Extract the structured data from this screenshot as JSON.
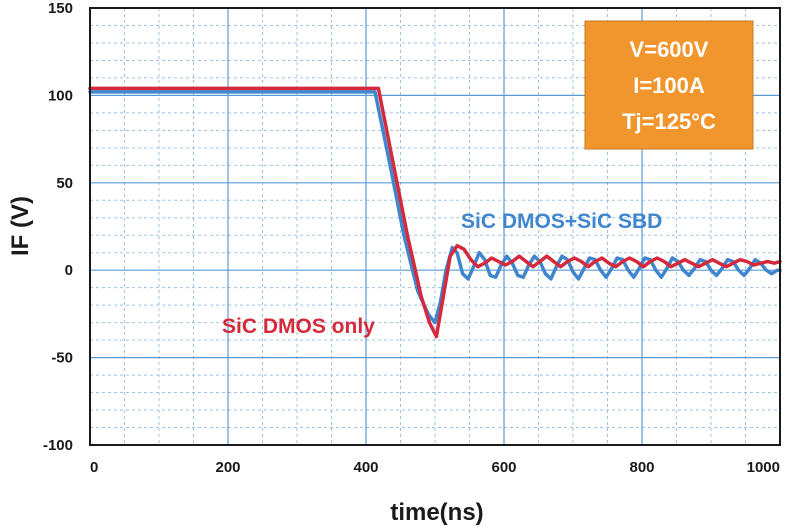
{
  "chart_data": {
    "type": "line",
    "xlabel": "time(ns)",
    "ylabel": "IF (V)",
    "xlim": [
      0,
      1000
    ],
    "ylim": [
      -100,
      150
    ],
    "x_ticks": [
      0,
      200,
      400,
      600,
      800,
      1000
    ],
    "y_ticks": [
      150,
      100,
      50,
      0,
      -50,
      -100
    ],
    "x_ticks_labels": [
      "0",
      "200",
      "400",
      "600",
      "800",
      "1000"
    ],
    "y_ticks_labels": [
      "150",
      "100",
      "50",
      "0",
      "-50",
      "-100"
    ],
    "grid": true,
    "annotation_box": {
      "lines": [
        "V=600V",
        "I=100A",
        "Tj=125°C"
      ],
      "color": "#F0962D"
    },
    "series": [
      {
        "name": "SiC DMOS only",
        "color": "#D42A3C",
        "points": [
          [
            0,
            104
          ],
          [
            418,
            104
          ],
          [
            440,
            60
          ],
          [
            460,
            20
          ],
          [
            480,
            -15
          ],
          [
            492,
            -30
          ],
          [
            502,
            -38
          ],
          [
            512,
            -15
          ],
          [
            522,
            8
          ],
          [
            532,
            14
          ],
          [
            542,
            12
          ],
          [
            552,
            6
          ],
          [
            562,
            2
          ],
          [
            572,
            4
          ],
          [
            582,
            7
          ],
          [
            592,
            5
          ],
          [
            602,
            3
          ],
          [
            612,
            5
          ],
          [
            622,
            8
          ],
          [
            632,
            5
          ],
          [
            642,
            2
          ],
          [
            652,
            5
          ],
          [
            662,
            8
          ],
          [
            672,
            5
          ],
          [
            682,
            2
          ],
          [
            692,
            5
          ],
          [
            702,
            7
          ],
          [
            712,
            5
          ],
          [
            722,
            2
          ],
          [
            732,
            5
          ],
          [
            742,
            7
          ],
          [
            752,
            4
          ],
          [
            762,
            2
          ],
          [
            772,
            5
          ],
          [
            782,
            7
          ],
          [
            792,
            5
          ],
          [
            802,
            2
          ],
          [
            812,
            5
          ],
          [
            822,
            7
          ],
          [
            832,
            5
          ],
          [
            842,
            2
          ],
          [
            852,
            4
          ],
          [
            862,
            6
          ],
          [
            872,
            4
          ],
          [
            882,
            2
          ],
          [
            892,
            4
          ],
          [
            902,
            6
          ],
          [
            912,
            4
          ],
          [
            922,
            2
          ],
          [
            932,
            4
          ],
          [
            942,
            6
          ],
          [
            952,
            5
          ],
          [
            962,
            3
          ],
          [
            972,
            4
          ],
          [
            982,
            5
          ],
          [
            992,
            4
          ],
          [
            1000,
            5
          ]
        ]
      },
      {
        "name": "SiC DMOS+SiC SBD",
        "color": "#3F86CF",
        "points": [
          [
            0,
            102
          ],
          [
            413,
            102
          ],
          [
            435,
            60
          ],
          [
            455,
            20
          ],
          [
            475,
            -12
          ],
          [
            490,
            -25
          ],
          [
            500,
            -30
          ],
          [
            508,
            -18
          ],
          [
            516,
            0
          ],
          [
            525,
            13
          ],
          [
            532,
            10
          ],
          [
            540,
            -2
          ],
          [
            548,
            -5
          ],
          [
            556,
            2
          ],
          [
            564,
            10
          ],
          [
            572,
            6
          ],
          [
            580,
            -3
          ],
          [
            588,
            -4
          ],
          [
            596,
            3
          ],
          [
            604,
            8
          ],
          [
            612,
            4
          ],
          [
            620,
            -3
          ],
          [
            628,
            -4
          ],
          [
            636,
            3
          ],
          [
            644,
            8
          ],
          [
            652,
            5
          ],
          [
            660,
            -2
          ],
          [
            668,
            -5
          ],
          [
            676,
            2
          ],
          [
            684,
            8
          ],
          [
            692,
            6
          ],
          [
            700,
            -1
          ],
          [
            708,
            -5
          ],
          [
            716,
            1
          ],
          [
            724,
            7
          ],
          [
            732,
            6
          ],
          [
            740,
            0
          ],
          [
            748,
            -4
          ],
          [
            756,
            1
          ],
          [
            764,
            7
          ],
          [
            772,
            6
          ],
          [
            780,
            0
          ],
          [
            788,
            -4
          ],
          [
            796,
            1
          ],
          [
            804,
            7
          ],
          [
            812,
            6
          ],
          [
            820,
            0
          ],
          [
            828,
            -4
          ],
          [
            836,
            1
          ],
          [
            844,
            7
          ],
          [
            852,
            5
          ],
          [
            860,
            0
          ],
          [
            868,
            -3
          ],
          [
            876,
            1
          ],
          [
            884,
            6
          ],
          [
            892,
            5
          ],
          [
            900,
            0
          ],
          [
            908,
            -3
          ],
          [
            916,
            1
          ],
          [
            924,
            6
          ],
          [
            932,
            5
          ],
          [
            940,
            0
          ],
          [
            948,
            -3
          ],
          [
            956,
            1
          ],
          [
            964,
            6
          ],
          [
            972,
            4
          ],
          [
            980,
            0
          ],
          [
            988,
            -2
          ],
          [
            996,
            0
          ],
          [
            1000,
            0
          ]
        ]
      }
    ]
  }
}
